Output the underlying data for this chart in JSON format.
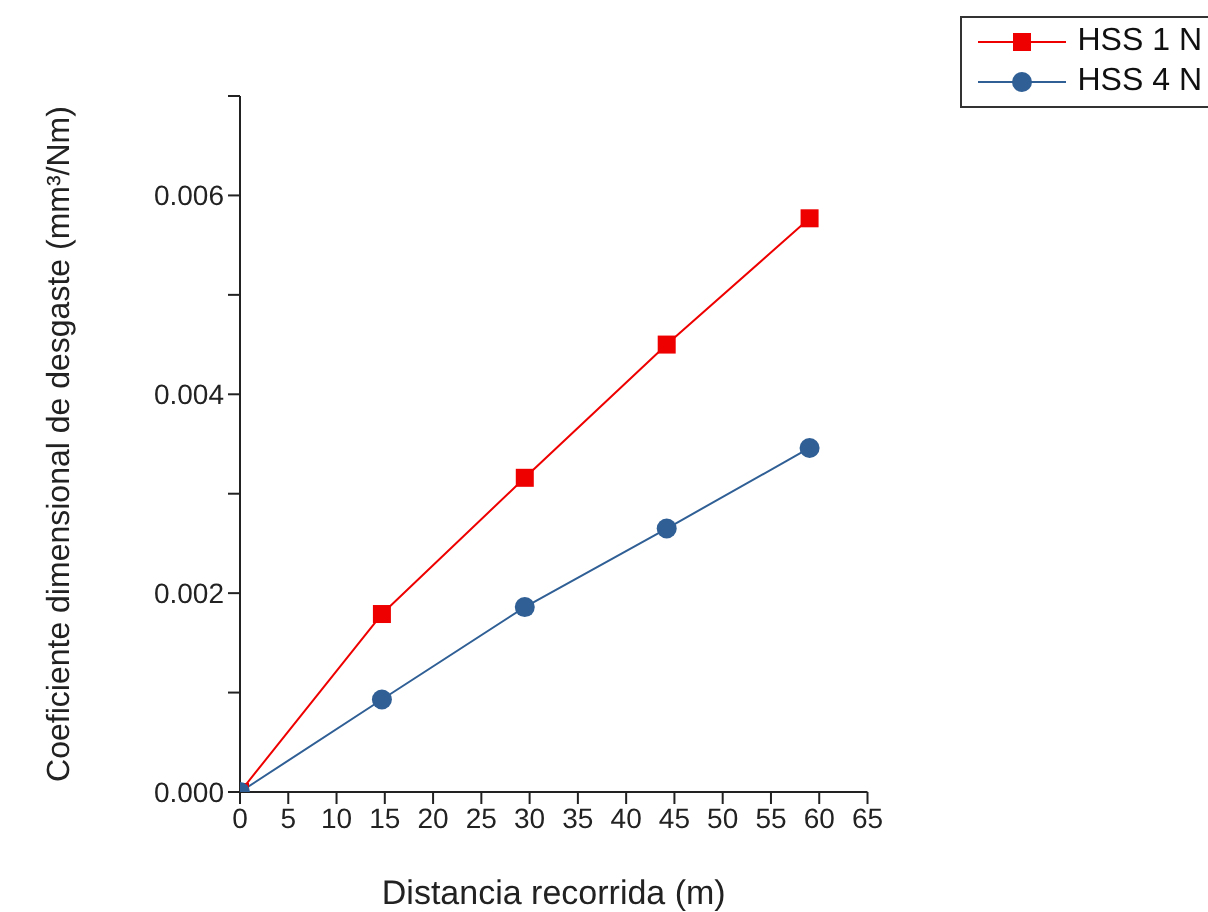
{
  "chart_data": {
    "type": "line",
    "xlabel": "Distancia recorrida (m)",
    "ylabel": "Coeficiente dimensional de desgaste (mm³/Nm)",
    "x": [
      0,
      14.7,
      29.5,
      44.2,
      59
    ],
    "series": [
      {
        "name": "HSS 1 N",
        "color": "#ee0000",
        "marker": "square",
        "values": [
          0,
          0.00179,
          0.00316,
          0.0045,
          0.00577
        ]
      },
      {
        "name": "HSS 4 N",
        "color": "#2f5f95",
        "marker": "circle",
        "values": [
          0,
          0.00093,
          0.00186,
          0.00265,
          0.00346
        ]
      }
    ],
    "xlim": [
      0,
      65
    ],
    "xticks": [
      0,
      5,
      10,
      15,
      20,
      25,
      30,
      35,
      40,
      45,
      50,
      55,
      60,
      65
    ],
    "ylim": [
      0,
      0.007
    ],
    "yticks": [
      {
        "value": 0,
        "label": "0.000"
      },
      {
        "value": 0.001,
        "label": null
      },
      {
        "value": 0.002,
        "label": "0.002"
      },
      {
        "value": 0.003,
        "label": null
      },
      {
        "value": 0.004,
        "label": "0.004"
      },
      {
        "value": 0.005,
        "label": null
      },
      {
        "value": 0.006,
        "label": "0.006"
      },
      {
        "value": 0.007,
        "label": null
      }
    ],
    "grid": false,
    "legend": "top right",
    "line_style": "solid"
  }
}
